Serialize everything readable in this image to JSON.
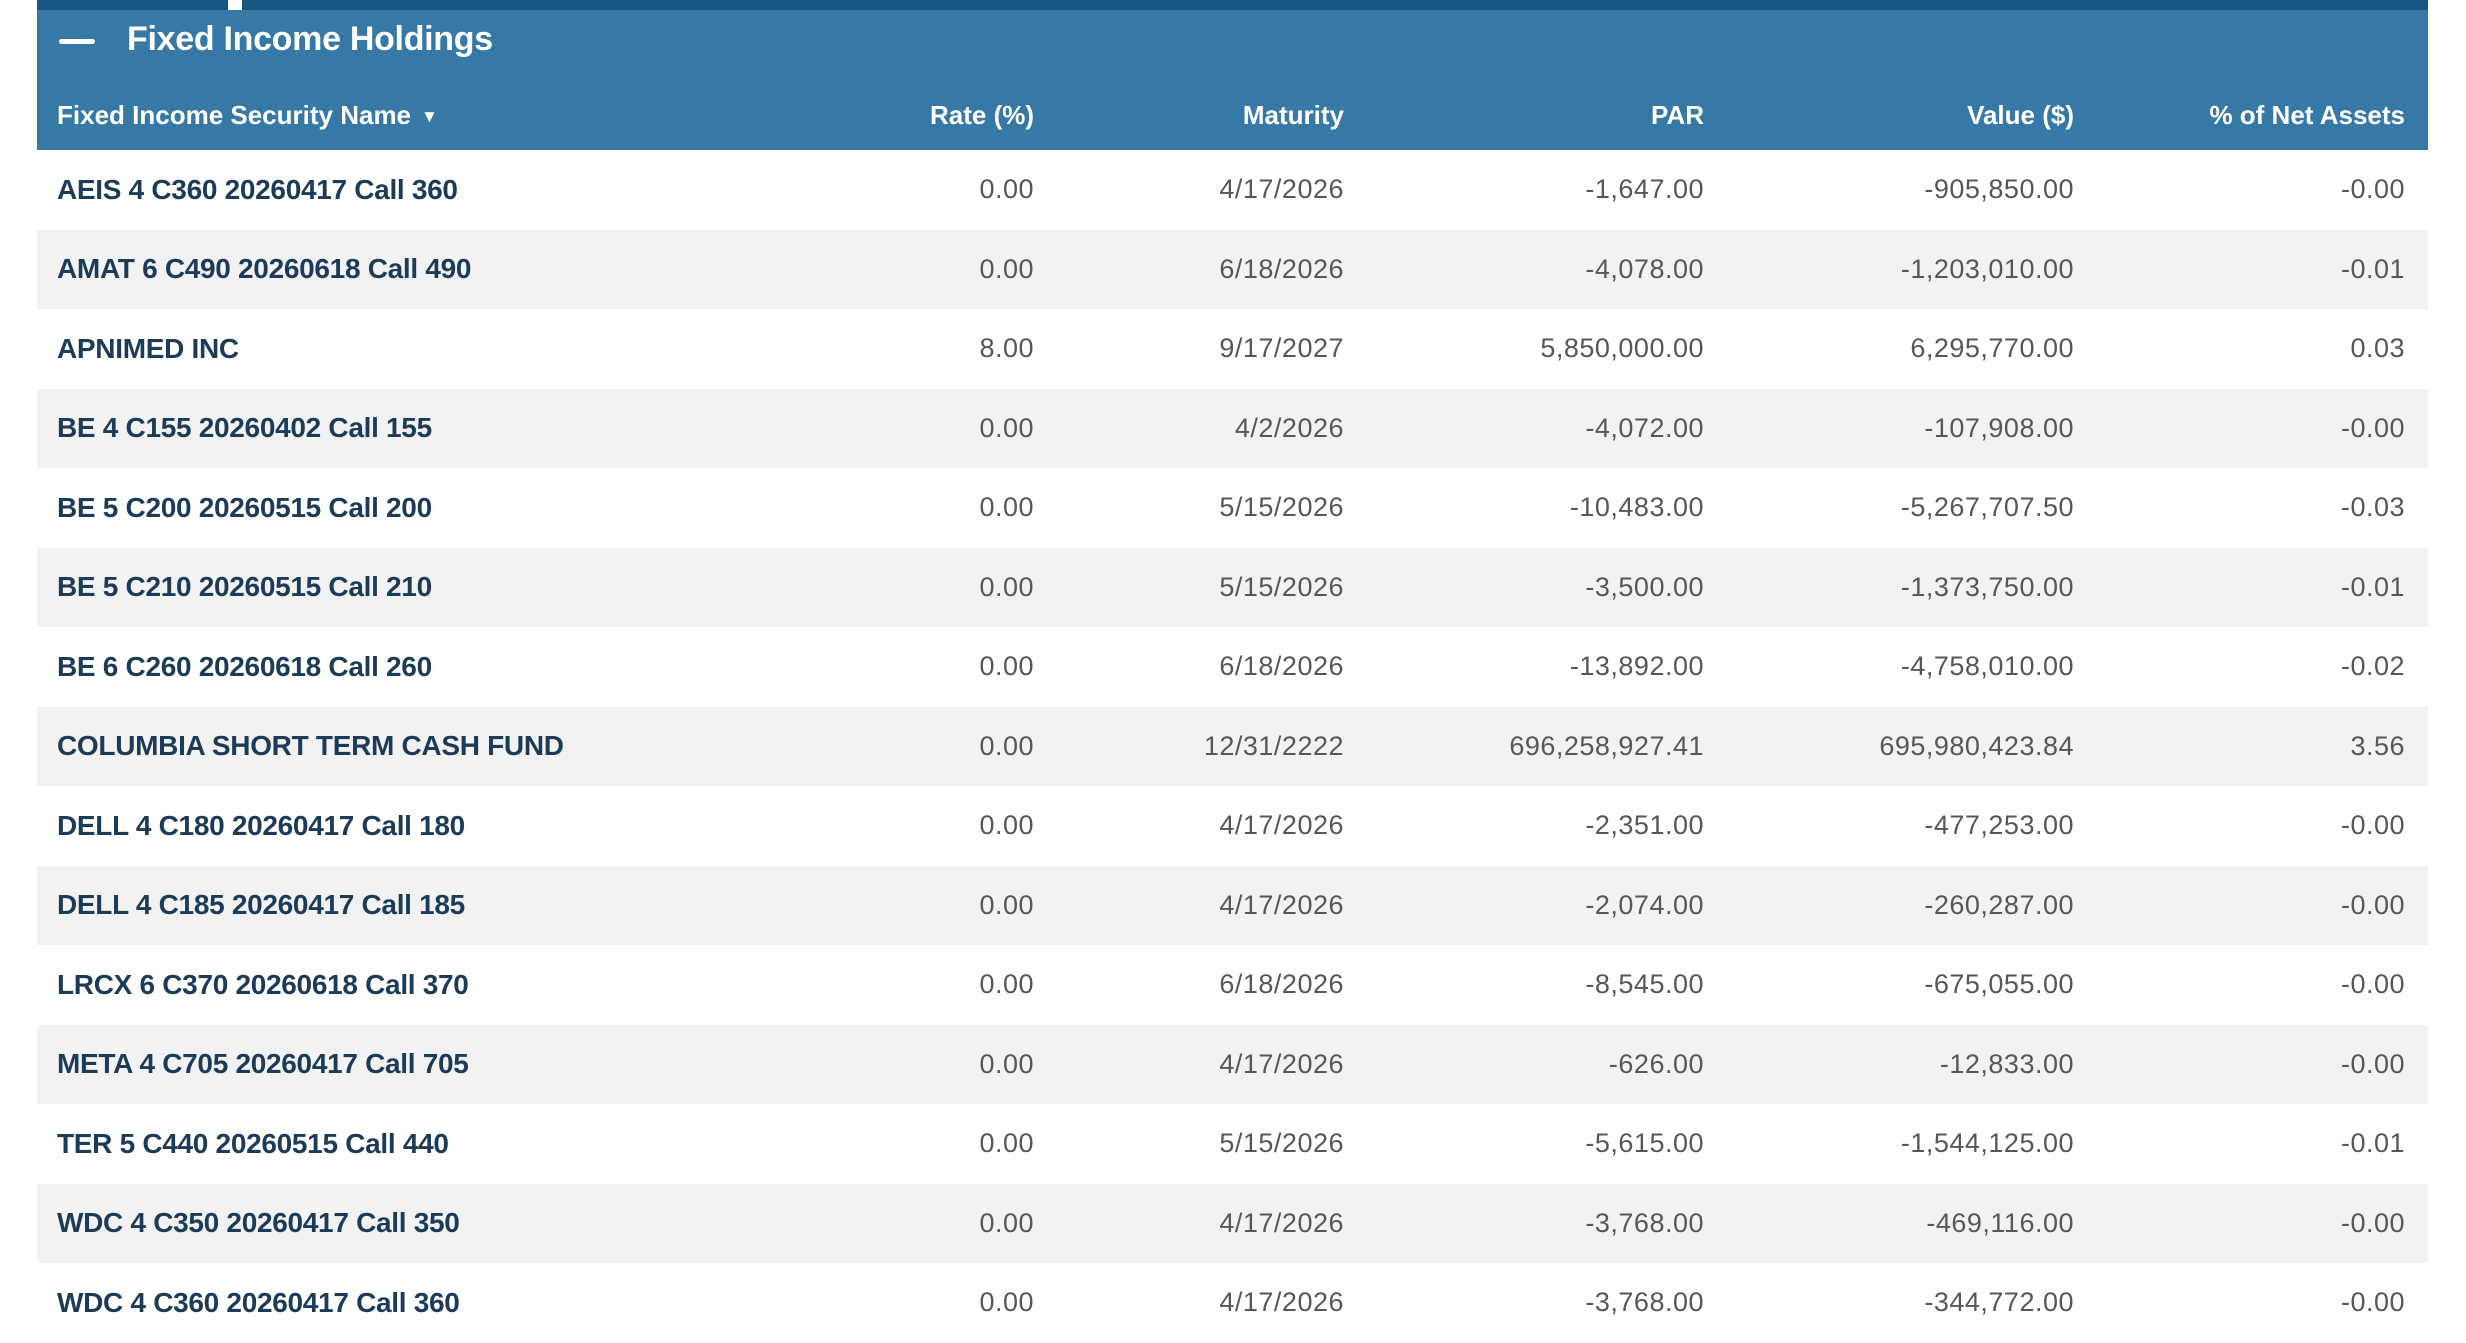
{
  "section": {
    "title": "Fixed Income Holdings"
  },
  "colors": {
    "header_blue": "#3678a6",
    "top_strip_navy": "#175781",
    "row_stripe": "#f2f2f2",
    "security_name_text": "#1c3b59",
    "number_text": "#57575a"
  },
  "table": {
    "sort_indicator": "▼",
    "columns": [
      {
        "label": "Fixed Income Security Name"
      },
      {
        "label": "Rate (%)"
      },
      {
        "label": "Maturity"
      },
      {
        "label": "PAR"
      },
      {
        "label": "Value ($)"
      },
      {
        "label": "% of Net Assets"
      }
    ],
    "rows": [
      {
        "name": "AEIS 4 C360 20260417 Call 360",
        "rate": "0.00",
        "maturity": "4/17/2026",
        "par": "-1,647.00",
        "value": "-905,850.00",
        "pct_net_assets": "-0.00"
      },
      {
        "name": "AMAT 6 C490 20260618 Call 490",
        "rate": "0.00",
        "maturity": "6/18/2026",
        "par": "-4,078.00",
        "value": "-1,203,010.00",
        "pct_net_assets": "-0.01"
      },
      {
        "name": "APNIMED INC",
        "rate": "8.00",
        "maturity": "9/17/2027",
        "par": "5,850,000.00",
        "value": "6,295,770.00",
        "pct_net_assets": "0.03"
      },
      {
        "name": "BE 4 C155 20260402 Call 155",
        "rate": "0.00",
        "maturity": "4/2/2026",
        "par": "-4,072.00",
        "value": "-107,908.00",
        "pct_net_assets": "-0.00"
      },
      {
        "name": "BE 5 C200 20260515 Call 200",
        "rate": "0.00",
        "maturity": "5/15/2026",
        "par": "-10,483.00",
        "value": "-5,267,707.50",
        "pct_net_assets": "-0.03"
      },
      {
        "name": "BE 5 C210 20260515 Call 210",
        "rate": "0.00",
        "maturity": "5/15/2026",
        "par": "-3,500.00",
        "value": "-1,373,750.00",
        "pct_net_assets": "-0.01"
      },
      {
        "name": "BE 6 C260 20260618 Call 260",
        "rate": "0.00",
        "maturity": "6/18/2026",
        "par": "-13,892.00",
        "value": "-4,758,010.00",
        "pct_net_assets": "-0.02"
      },
      {
        "name": "COLUMBIA SHORT TERM CASH FUND",
        "rate": "0.00",
        "maturity": "12/31/2222",
        "par": "696,258,927.41",
        "value": "695,980,423.84",
        "pct_net_assets": "3.56"
      },
      {
        "name": "DELL 4 C180 20260417 Call 180",
        "rate": "0.00",
        "maturity": "4/17/2026",
        "par": "-2,351.00",
        "value": "-477,253.00",
        "pct_net_assets": "-0.00"
      },
      {
        "name": "DELL 4 C185 20260417 Call 185",
        "rate": "0.00",
        "maturity": "4/17/2026",
        "par": "-2,074.00",
        "value": "-260,287.00",
        "pct_net_assets": "-0.00"
      },
      {
        "name": "LRCX 6 C370 20260618 Call 370",
        "rate": "0.00",
        "maturity": "6/18/2026",
        "par": "-8,545.00",
        "value": "-675,055.00",
        "pct_net_assets": "-0.00"
      },
      {
        "name": "META 4 C705 20260417 Call 705",
        "rate": "0.00",
        "maturity": "4/17/2026",
        "par": "-626.00",
        "value": "-12,833.00",
        "pct_net_assets": "-0.00"
      },
      {
        "name": "TER 5 C440 20260515 Call 440",
        "rate": "0.00",
        "maturity": "5/15/2026",
        "par": "-5,615.00",
        "value": "-1,544,125.00",
        "pct_net_assets": "-0.01"
      },
      {
        "name": "WDC 4 C350 20260417 Call 350",
        "rate": "0.00",
        "maturity": "4/17/2026",
        "par": "-3,768.00",
        "value": "-469,116.00",
        "pct_net_assets": "-0.00"
      },
      {
        "name": "WDC 4 C360 20260417 Call 360",
        "rate": "0.00",
        "maturity": "4/17/2026",
        "par": "-3,768.00",
        "value": "-344,772.00",
        "pct_net_assets": "-0.00"
      }
    ]
  }
}
